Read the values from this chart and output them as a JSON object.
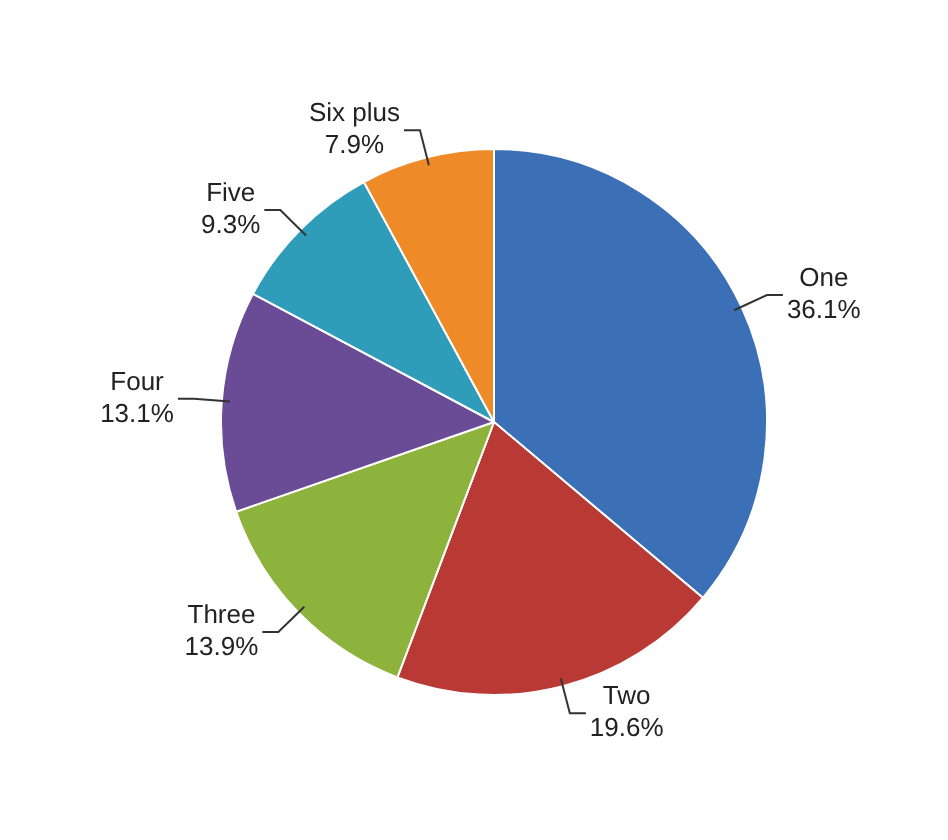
{
  "chart_data": {
    "type": "pie",
    "categories": [
      "One",
      "Two",
      "Three",
      "Four",
      "Five",
      "Six plus"
    ],
    "values": [
      36.1,
      19.6,
      13.9,
      13.1,
      9.3,
      7.9
    ],
    "value_labels": [
      "36.1%",
      "19.6%",
      "13.9%",
      "13.1%",
      "9.3%",
      "7.9%"
    ],
    "colors": [
      "#3b6fb6",
      "#b93a35",
      "#8db33d",
      "#6a4b95",
      "#2f9cba",
      "#ee8a27"
    ],
    "legend": false
  }
}
